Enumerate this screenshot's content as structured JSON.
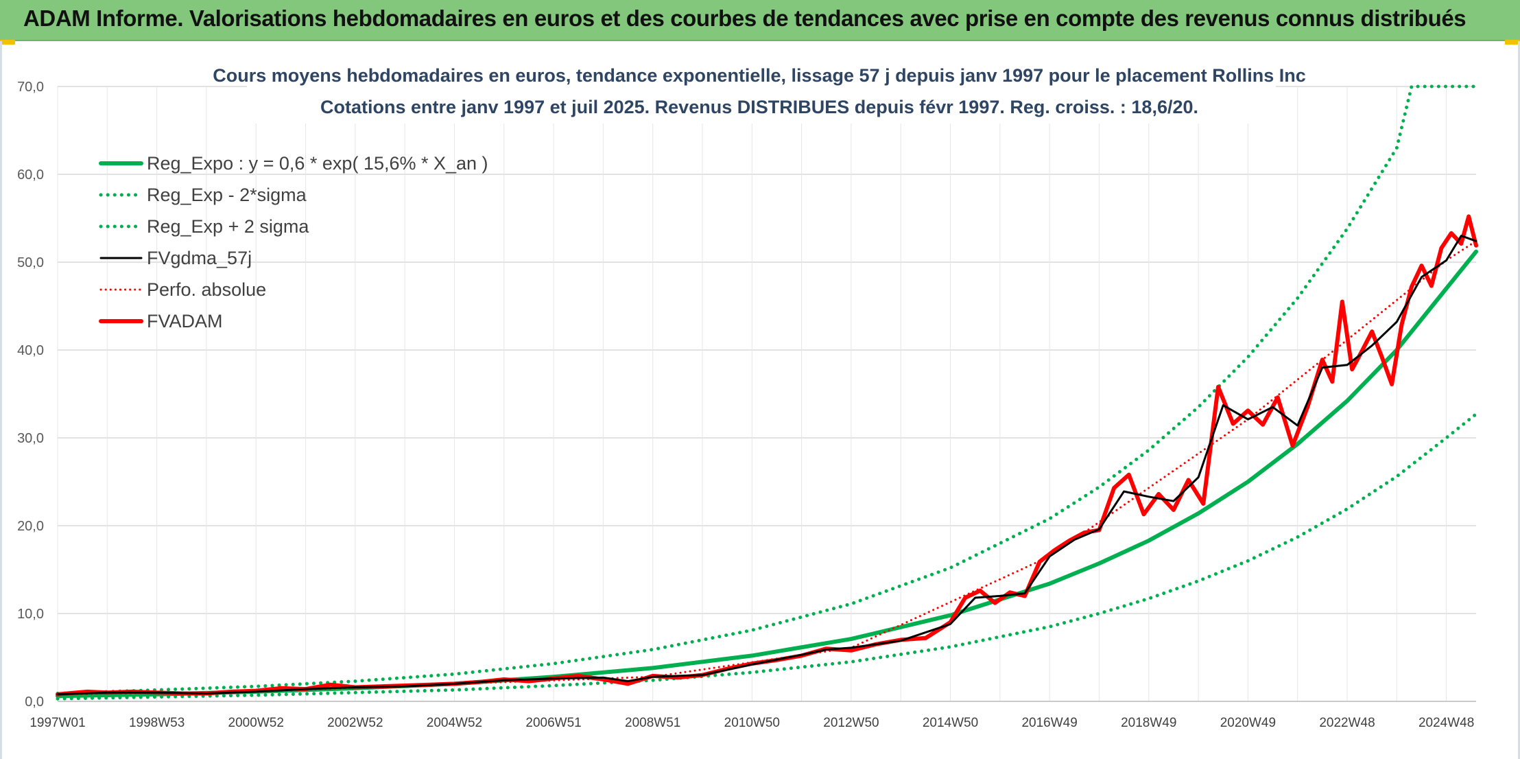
{
  "banner": {
    "title": "ADAM Informe. Valorisations hebdomadaires en euros et des courbes de tendances avec prise en compte des revenus connus distribués"
  },
  "colors": {
    "banner_bg": "#82c77c",
    "regression": "#00b050",
    "smoothed": "#000000",
    "price": "#ff0000",
    "title_text": "#2e4563"
  },
  "chart_data": {
    "type": "line",
    "title": "Cours moyens hebdomadaires en euros, tendance exponentielle, lissage 57 j depuis janv 1997 pour le placement Rollins Inc",
    "subtitle": "Cotations entre janv 1997 et juil 2025. Revenus DISTRIBUES depuis févr 1997. Reg. croiss. : 18,6/20.",
    "xlabel": "",
    "ylabel": "",
    "ylim": [
      0,
      70
    ],
    "xlim": [
      1997.0,
      2025.6
    ],
    "y_ticks": [
      "0,0",
      "10,0",
      "20,0",
      "30,0",
      "40,0",
      "50,0",
      "60,0",
      "70,0"
    ],
    "x_ticks": [
      {
        "label": "1997W01",
        "x": 1997.0
      },
      {
        "label": "1998W53",
        "x": 1999.0
      },
      {
        "label": "2000W52",
        "x": 2001.0
      },
      {
        "label": "2002W52",
        "x": 2003.0
      },
      {
        "label": "2004W52",
        "x": 2005.0
      },
      {
        "label": "2006W51",
        "x": 2007.0
      },
      {
        "label": "2008W51",
        "x": 2009.0
      },
      {
        "label": "2010W50",
        "x": 2011.0
      },
      {
        "label": "2012W50",
        "x": 2013.0
      },
      {
        "label": "2014W50",
        "x": 2015.0
      },
      {
        "label": "2016W49",
        "x": 2017.0
      },
      {
        "label": "2018W49",
        "x": 2019.0
      },
      {
        "label": "2020W49",
        "x": 2021.0
      },
      {
        "label": "2022W48",
        "x": 2023.0
      },
      {
        "label": "2024W48",
        "x": 2025.0
      }
    ],
    "grid": true,
    "legend_position": "top-left",
    "series": [
      {
        "name": "Reg_Expo : y = 0,6 * exp( 15,6% *  X_an )",
        "style": "solid-thick",
        "color": "#00b050",
        "x": [
          1997.0,
          1999.0,
          2001.0,
          2003.0,
          2005.0,
          2007.0,
          2009.0,
          2011.0,
          2013.0,
          2015.0,
          2017.0,
          2018.0,
          2019.0,
          2020.0,
          2021.0,
          2022.0,
          2023.0,
          2024.0,
          2025.0,
          2025.6
        ],
        "y": [
          0.6,
          0.8,
          1.1,
          1.5,
          2.0,
          2.8,
          3.8,
          5.2,
          7.1,
          9.8,
          13.4,
          15.7,
          18.3,
          21.4,
          25.0,
          29.3,
          34.2,
          40.0,
          47.0,
          51.2
        ]
      },
      {
        "name": "Reg_Exp - 2*sigma",
        "style": "dotted",
        "color": "#00b050",
        "x": [
          1997.0,
          1999.0,
          2001.0,
          2003.0,
          2005.0,
          2007.0,
          2009.0,
          2011.0,
          2013.0,
          2015.0,
          2017.0,
          2018.0,
          2019.0,
          2020.0,
          2021.0,
          2022.0,
          2023.0,
          2024.0,
          2025.0,
          2025.6
        ],
        "y": [
          0.3,
          0.5,
          0.7,
          1.0,
          1.3,
          1.8,
          2.4,
          3.3,
          4.5,
          6.2,
          8.5,
          10.0,
          11.7,
          13.7,
          16.0,
          18.7,
          21.9,
          25.6,
          30.0,
          32.7
        ]
      },
      {
        "name": "Reg_Exp + 2 sigma",
        "style": "dotted",
        "color": "#00b050",
        "x": [
          1997.0,
          1999.0,
          2001.0,
          2003.0,
          2005.0,
          2007.0,
          2009.0,
          2011.0,
          2013.0,
          2015.0,
          2017.0,
          2018.0,
          2019.0,
          2020.0,
          2021.0,
          2022.0,
          2023.0,
          2024.0,
          2024.3,
          2025.6
        ],
        "y": [
          0.9,
          1.3,
          1.7,
          2.3,
          3.1,
          4.3,
          5.9,
          8.1,
          11.1,
          15.2,
          20.8,
          24.4,
          28.6,
          33.5,
          39.2,
          45.9,
          53.8,
          63.0,
          70.0,
          70.0
        ]
      },
      {
        "name": "FVgdma_57j",
        "style": "solid",
        "color": "#000000",
        "x": [
          1997.0,
          1998.0,
          1999.0,
          2000.0,
          2001.0,
          2002.0,
          2003.0,
          2004.0,
          2005.0,
          2006.0,
          2007.0,
          2008.0,
          2008.5,
          2009.0,
          2010.0,
          2011.0,
          2012.0,
          2012.5,
          2013.0,
          2014.0,
          2015.0,
          2015.5,
          2016.0,
          2016.5,
          2017.0,
          2017.5,
          2018.0,
          2018.5,
          2019.0,
          2019.5,
          2020.0,
          2020.5,
          2021.0,
          2021.5,
          2022.0,
          2022.5,
          2023.0,
          2023.5,
          2024.0,
          2024.5,
          2025.0,
          2025.3,
          2025.6
        ],
        "y": [
          0.8,
          1.0,
          1.0,
          0.9,
          1.1,
          1.4,
          1.6,
          1.7,
          2.0,
          2.4,
          2.6,
          2.7,
          2.3,
          2.8,
          3.0,
          4.2,
          5.3,
          5.9,
          6.1,
          6.9,
          8.8,
          11.8,
          12.0,
          12.3,
          16.5,
          18.4,
          19.6,
          23.9,
          23.3,
          22.8,
          25.5,
          33.7,
          32.1,
          33.5,
          31.4,
          38.0,
          38.3,
          40.5,
          43.2,
          48.3,
          50.2,
          53.0,
          52.4
        ]
      },
      {
        "name": "Perfo. absolue",
        "style": "dotted-thin",
        "color": "#ff0000",
        "x": [
          1997.0,
          2001.0,
          2005.0,
          2009.0,
          2013.0,
          2017.0,
          2021.0,
          2025.0,
          2025.6
        ],
        "y": [
          0.8,
          1.1,
          2.0,
          2.8,
          6.1,
          16.5,
          32.1,
          50.2,
          52.4
        ]
      },
      {
        "name": "FVADAM",
        "style": "solid-thick",
        "color": "#ff0000",
        "x": [
          1997.0,
          1997.6,
          1998.0,
          1998.5,
          1999.0,
          1999.5,
          2000.0,
          2000.5,
          2001.0,
          2001.5,
          2002.0,
          2002.5,
          2003.0,
          2003.5,
          2004.0,
          2004.5,
          2005.0,
          2005.5,
          2006.0,
          2006.5,
          2007.0,
          2007.5,
          2008.0,
          2008.5,
          2009.0,
          2009.5,
          2010.0,
          2010.5,
          2011.0,
          2011.5,
          2012.0,
          2012.5,
          2013.0,
          2013.5,
          2014.0,
          2014.5,
          2015.0,
          2015.3,
          2015.6,
          2015.9,
          2016.2,
          2016.5,
          2016.8,
          2017.1,
          2017.4,
          2017.7,
          2018.0,
          2018.3,
          2018.6,
          2018.9,
          2019.2,
          2019.5,
          2019.8,
          2020.1,
          2020.4,
          2020.7,
          2021.0,
          2021.3,
          2021.6,
          2021.9,
          2022.2,
          2022.5,
          2022.7,
          2022.9,
          2023.1,
          2023.3,
          2023.5,
          2023.7,
          2023.9,
          2024.1,
          2024.3,
          2024.5,
          2024.7,
          2024.9,
          2025.1,
          2025.3,
          2025.45,
          2025.6
        ],
        "y": [
          0.8,
          1.1,
          1.0,
          1.1,
          1.0,
          0.9,
          0.9,
          1.1,
          1.2,
          1.5,
          1.4,
          1.9,
          1.6,
          1.7,
          1.8,
          1.9,
          2.0,
          2.2,
          2.5,
          2.3,
          2.6,
          2.9,
          2.5,
          2.0,
          2.9,
          2.7,
          3.0,
          3.7,
          4.3,
          4.7,
          5.2,
          6.0,
          5.8,
          6.5,
          7.0,
          7.2,
          9.0,
          11.8,
          12.6,
          11.2,
          12.4,
          12.0,
          15.9,
          17.2,
          18.3,
          19.2,
          19.5,
          24.3,
          25.8,
          21.3,
          23.6,
          21.8,
          25.2,
          22.5,
          35.8,
          31.6,
          33.1,
          31.5,
          34.6,
          29.1,
          33.5,
          38.9,
          36.4,
          45.5,
          37.8,
          39.9,
          42.1,
          39.2,
          36.1,
          42.9,
          47.2,
          49.6,
          47.3,
          51.6,
          53.3,
          52.1,
          55.2,
          51.9
        ]
      }
    ]
  }
}
